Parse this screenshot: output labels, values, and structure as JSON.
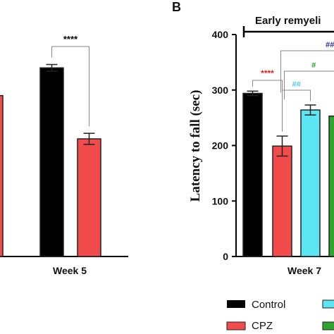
{
  "panel_b_label": "B",
  "chart_data": [
    {
      "type": "bar",
      "panel": "A",
      "categories": [
        "Week 5"
      ],
      "ylim": [
        0,
        400
      ],
      "series": [
        {
          "values": [
            340
          ],
          "errors": [
            6
          ],
          "color": "#000000"
        },
        {
          "values": [
            212
          ],
          "errors": [
            10
          ],
          "color": "#f24b4b"
        }
      ],
      "annotations": [
        {
          "text": "****",
          "color": "#000000"
        }
      ]
    },
    {
      "type": "bar",
      "panel": "B",
      "title": "Early remyeli",
      "ylabel": "Latency to fall (sec)",
      "categories": [
        "Week 7"
      ],
      "ylim": [
        0,
        400
      ],
      "yticks": [
        "0",
        "100",
        "200",
        "300",
        "400"
      ],
      "series": [
        {
          "name": "Control",
          "values": [
            294
          ],
          "errors": [
            4
          ],
          "color": "#000000"
        },
        {
          "name": "CPZ",
          "values": [
            199
          ],
          "errors": [
            18
          ],
          "color": "#f24b4b"
        },
        {
          "values": [
            264
          ],
          "errors": [
            9
          ],
          "color": "#5ce6f2"
        },
        {
          "values": [
            253
          ],
          "errors": [
            0
          ],
          "color": "#2fa52f"
        }
      ],
      "annotations": [
        {
          "text": "****",
          "color": "#e02020"
        },
        {
          "text": "##",
          "color": "#3fd0ee"
        },
        {
          "text": "#",
          "color": "#22aa22"
        },
        {
          "text": "##",
          "color": "#2b2b9e"
        }
      ],
      "legend": {
        "placement": "bottom"
      }
    }
  ]
}
